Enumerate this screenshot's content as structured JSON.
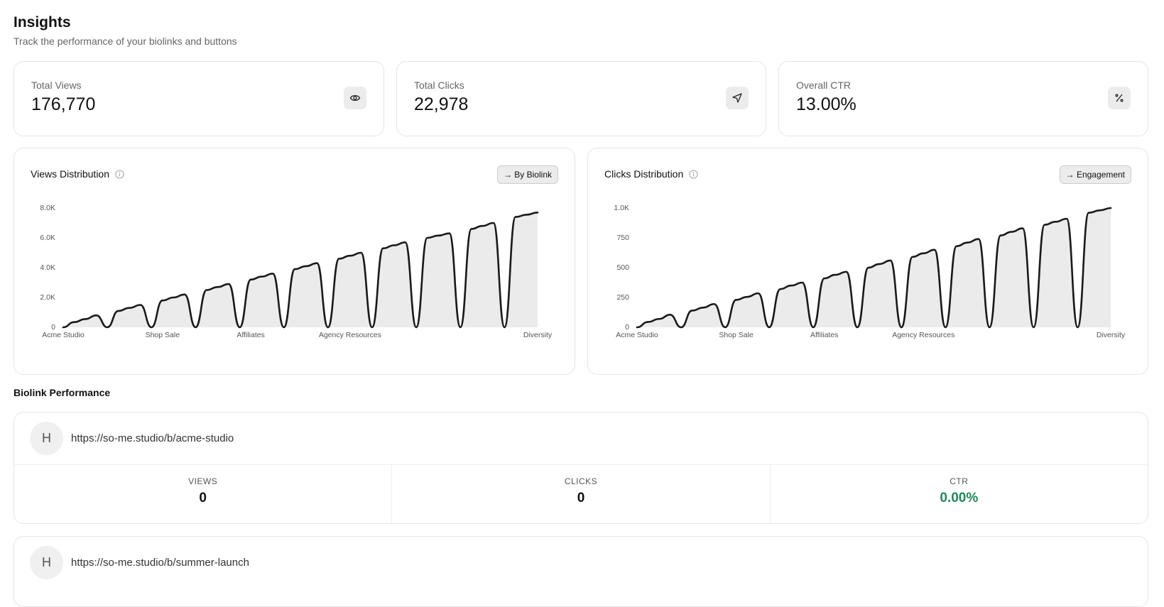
{
  "header": {
    "title": "Insights",
    "subtitle": "Track the performance of your biolinks and buttons"
  },
  "stats": [
    {
      "label": "Total Views",
      "value": "176,770"
    },
    {
      "label": "Total Clicks",
      "value": "22,978"
    },
    {
      "label": "Overall CTR",
      "value": "13.00%"
    }
  ],
  "chart_data": [
    {
      "type": "area",
      "title": "Views Distribution",
      "button": "→ By Biolink",
      "categories": [
        "Acme Studio",
        null,
        null,
        null,
        null,
        null,
        null,
        null,
        null,
        "Shop Sale",
        null,
        null,
        null,
        null,
        null,
        null,
        null,
        "Affiliates",
        null,
        null,
        null,
        null,
        null,
        null,
        null,
        null,
        "Agency Resources",
        null,
        null,
        null,
        null,
        null,
        null,
        null,
        null,
        null,
        null,
        null,
        null,
        null,
        null,
        null,
        null,
        "Diversity"
      ],
      "values": [
        0,
        350,
        550,
        800,
        0,
        1100,
        1300,
        1500,
        0,
        1800,
        2000,
        2200,
        0,
        2500,
        2700,
        2900,
        0,
        3200,
        3400,
        3600,
        0,
        3900,
        4100,
        4300,
        0,
        4600,
        4800,
        5000,
        0,
        5300,
        5500,
        5700,
        0,
        6000,
        6150,
        6300,
        0,
        6600,
        6800,
        7000,
        0,
        7400,
        7550,
        7700
      ],
      "color": "#1a1a1a",
      "fill_color": "#ebebeb",
      "ylim": [
        0,
        8000
      ],
      "yticks": [
        0,
        {
          "value": 2000,
          "label": "2.0K"
        },
        {
          "value": 4000,
          "label": "4.0K"
        },
        {
          "value": 6000,
          "label": "6.0K"
        },
        {
          "value": 8000,
          "label": "8.0K"
        }
      ]
    },
    {
      "type": "area",
      "title": "Clicks Distribution",
      "button": "→ Engagement",
      "categories": [
        "Acme Studio",
        null,
        null,
        null,
        null,
        null,
        null,
        null,
        null,
        "Shop Sale",
        null,
        null,
        null,
        null,
        null,
        null,
        null,
        "Affiliates",
        null,
        null,
        null,
        null,
        null,
        null,
        null,
        null,
        "Agency Resources",
        null,
        null,
        null,
        null,
        null,
        null,
        null,
        null,
        null,
        null,
        null,
        null,
        null,
        null,
        null,
        null,
        "Diversity"
      ],
      "values": [
        0,
        45,
        70,
        105,
        0,
        140,
        165,
        195,
        0,
        230,
        255,
        285,
        0,
        320,
        350,
        375,
        0,
        410,
        440,
        465,
        0,
        500,
        530,
        560,
        0,
        590,
        620,
        650,
        0,
        680,
        710,
        740,
        0,
        770,
        800,
        830,
        0,
        860,
        885,
        910,
        0,
        960,
        980,
        1000
      ],
      "color": "#1a1a1a",
      "fill_color": "#ebebeb",
      "ylim": [
        0,
        1000
      ],
      "yticks": [
        0,
        250,
        500,
        750,
        {
          "value": 1000,
          "label": "1.0K"
        }
      ]
    }
  ],
  "performance": {
    "title": "Biolink Performance",
    "items": [
      {
        "avatar": "H",
        "url": "https://so-me.studio/b/acme-studio",
        "metrics": [
          {
            "label": "VIEWS",
            "value": "0"
          },
          {
            "label": "CLICKS",
            "value": "0"
          },
          {
            "label": "CTR",
            "value": "0.00%"
          }
        ]
      },
      {
        "avatar": "H",
        "url": "https://so-me.studio/b/summer-launch"
      }
    ]
  }
}
